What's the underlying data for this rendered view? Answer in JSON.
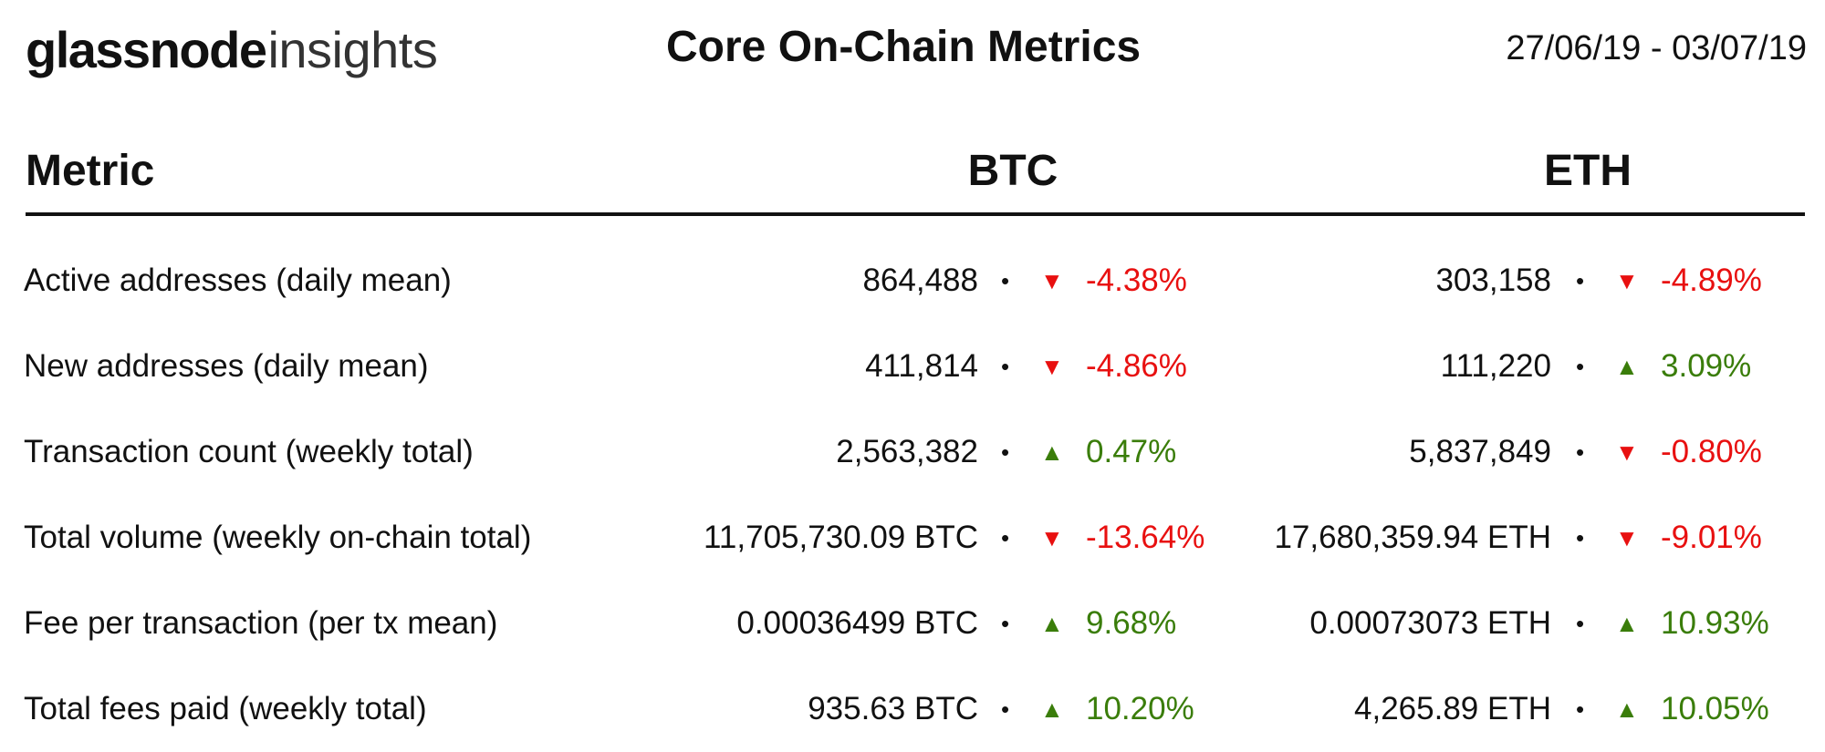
{
  "header": {
    "logo_main": "glassnode",
    "logo_sub": "insights",
    "title": "Core On-Chain Metrics",
    "date_range": "27/06/19 - 03/07/19"
  },
  "columns": {
    "metric": "Metric",
    "btc": "BTC",
    "eth": "ETH"
  },
  "colors": {
    "up": "#3a7d0a",
    "down": "#e81010",
    "text": "#111111"
  },
  "rows": [
    {
      "label": "Active addresses (daily mean)",
      "btc": {
        "value": "864,488",
        "dir": "down",
        "arrow": "▼",
        "pct": "-4.38%"
      },
      "eth": {
        "value": "303,158",
        "dir": "down",
        "arrow": "▼",
        "pct": "-4.89%"
      }
    },
    {
      "label": "New addresses (daily mean)",
      "btc": {
        "value": "411,814",
        "dir": "down",
        "arrow": "▼",
        "pct": "-4.86%"
      },
      "eth": {
        "value": "111,220",
        "dir": "up",
        "arrow": "▲",
        "pct": "3.09%"
      }
    },
    {
      "label": "Transaction count (weekly total)",
      "btc": {
        "value": "2,563,382",
        "dir": "up",
        "arrow": "▲",
        "pct": "0.47%"
      },
      "eth": {
        "value": "5,837,849",
        "dir": "down",
        "arrow": "▼",
        "pct": "-0.80%"
      }
    },
    {
      "label": "Total volume (weekly on-chain total)",
      "btc": {
        "value": "11,705,730.09 BTC",
        "dir": "down",
        "arrow": "▼",
        "pct": "-13.64%"
      },
      "eth": {
        "value": "17,680,359.94 ETH",
        "dir": "down",
        "arrow": "▼",
        "pct": "-9.01%"
      }
    },
    {
      "label": "Fee per transaction (per tx mean)",
      "btc": {
        "value": "0.00036499 BTC",
        "dir": "up",
        "arrow": "▲",
        "pct": "9.68%"
      },
      "eth": {
        "value": "0.00073073 ETH",
        "dir": "up",
        "arrow": "▲",
        "pct": "10.93%"
      }
    },
    {
      "label": "Total fees paid (weekly total)",
      "btc": {
        "value": "935.63 BTC",
        "dir": "up",
        "arrow": "▲",
        "pct": "10.20%"
      },
      "eth": {
        "value": "4,265.89 ETH",
        "dir": "up",
        "arrow": "▲",
        "pct": "10.05%"
      }
    }
  ]
}
